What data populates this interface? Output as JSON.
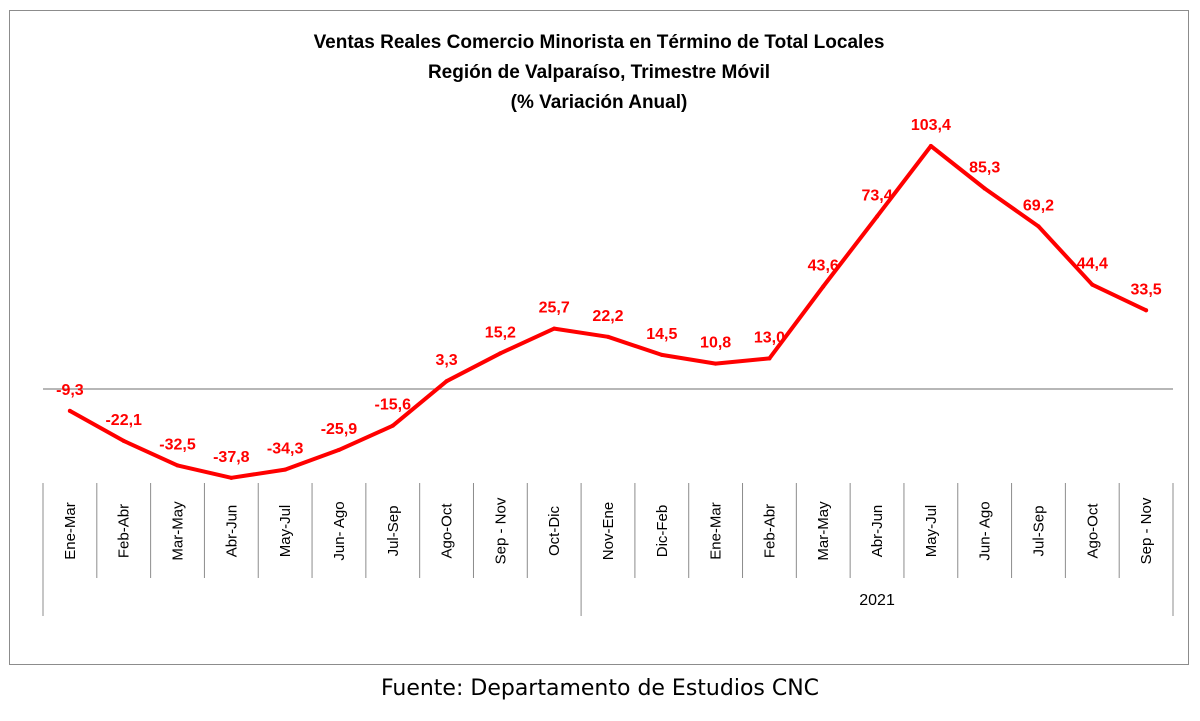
{
  "chart_data": {
    "type": "line",
    "title": [
      "Ventas Reales Comercio Minorista  en Término de Total Locales",
      "Región de Valparaíso, Trimestre Móvil",
      "(% Variación Anual)"
    ],
    "categories": [
      "Ene-Mar",
      "Feb-Abr",
      "Mar-May",
      "Abr-Jun",
      "May-Jul",
      "Jun- Ago",
      "Jul-Sep",
      "Ago-Oct",
      "Sep - Nov",
      "Oct-Dic",
      "Nov-Ene",
      "Dic-Feb",
      "Ene-Mar",
      "Feb-Abr",
      "Mar-May",
      "Abr-Jun",
      "May-Jul",
      "Jun- Ago",
      "Jul-Sep",
      "Ago-Oct",
      "Sep - Nov"
    ],
    "data_labels": [
      "-9,3",
      "-22,1",
      "-32,5",
      "-37,8",
      "-34,3",
      "-25,9",
      "-15,6",
      "3,3",
      "15,2",
      "25,7",
      "22,2",
      "14,5",
      "10,8",
      "13,0",
      "43,6",
      "73,4",
      "103,4",
      "85,3",
      "69,2",
      "44,4",
      "33,5"
    ],
    "series": [
      {
        "values": [
          -9.3,
          -22.1,
          -32.5,
          -37.8,
          -34.3,
          -25.9,
          -15.6,
          3.3,
          15.2,
          25.7,
          22.2,
          14.5,
          10.8,
          13.0,
          43.6,
          73.4,
          103.4,
          85.3,
          69.2,
          44.4,
          33.5
        ],
        "color": "#ff0000"
      }
    ],
    "groups": [
      {
        "label": "",
        "from": 0,
        "to": 9
      },
      {
        "label": "2021",
        "from": 10,
        "to": 20
      }
    ],
    "ylim": [
      -50,
      130
    ],
    "grid": false,
    "legend": "none"
  },
  "source_note": "Fuente: Departamento de Estudios CNC"
}
